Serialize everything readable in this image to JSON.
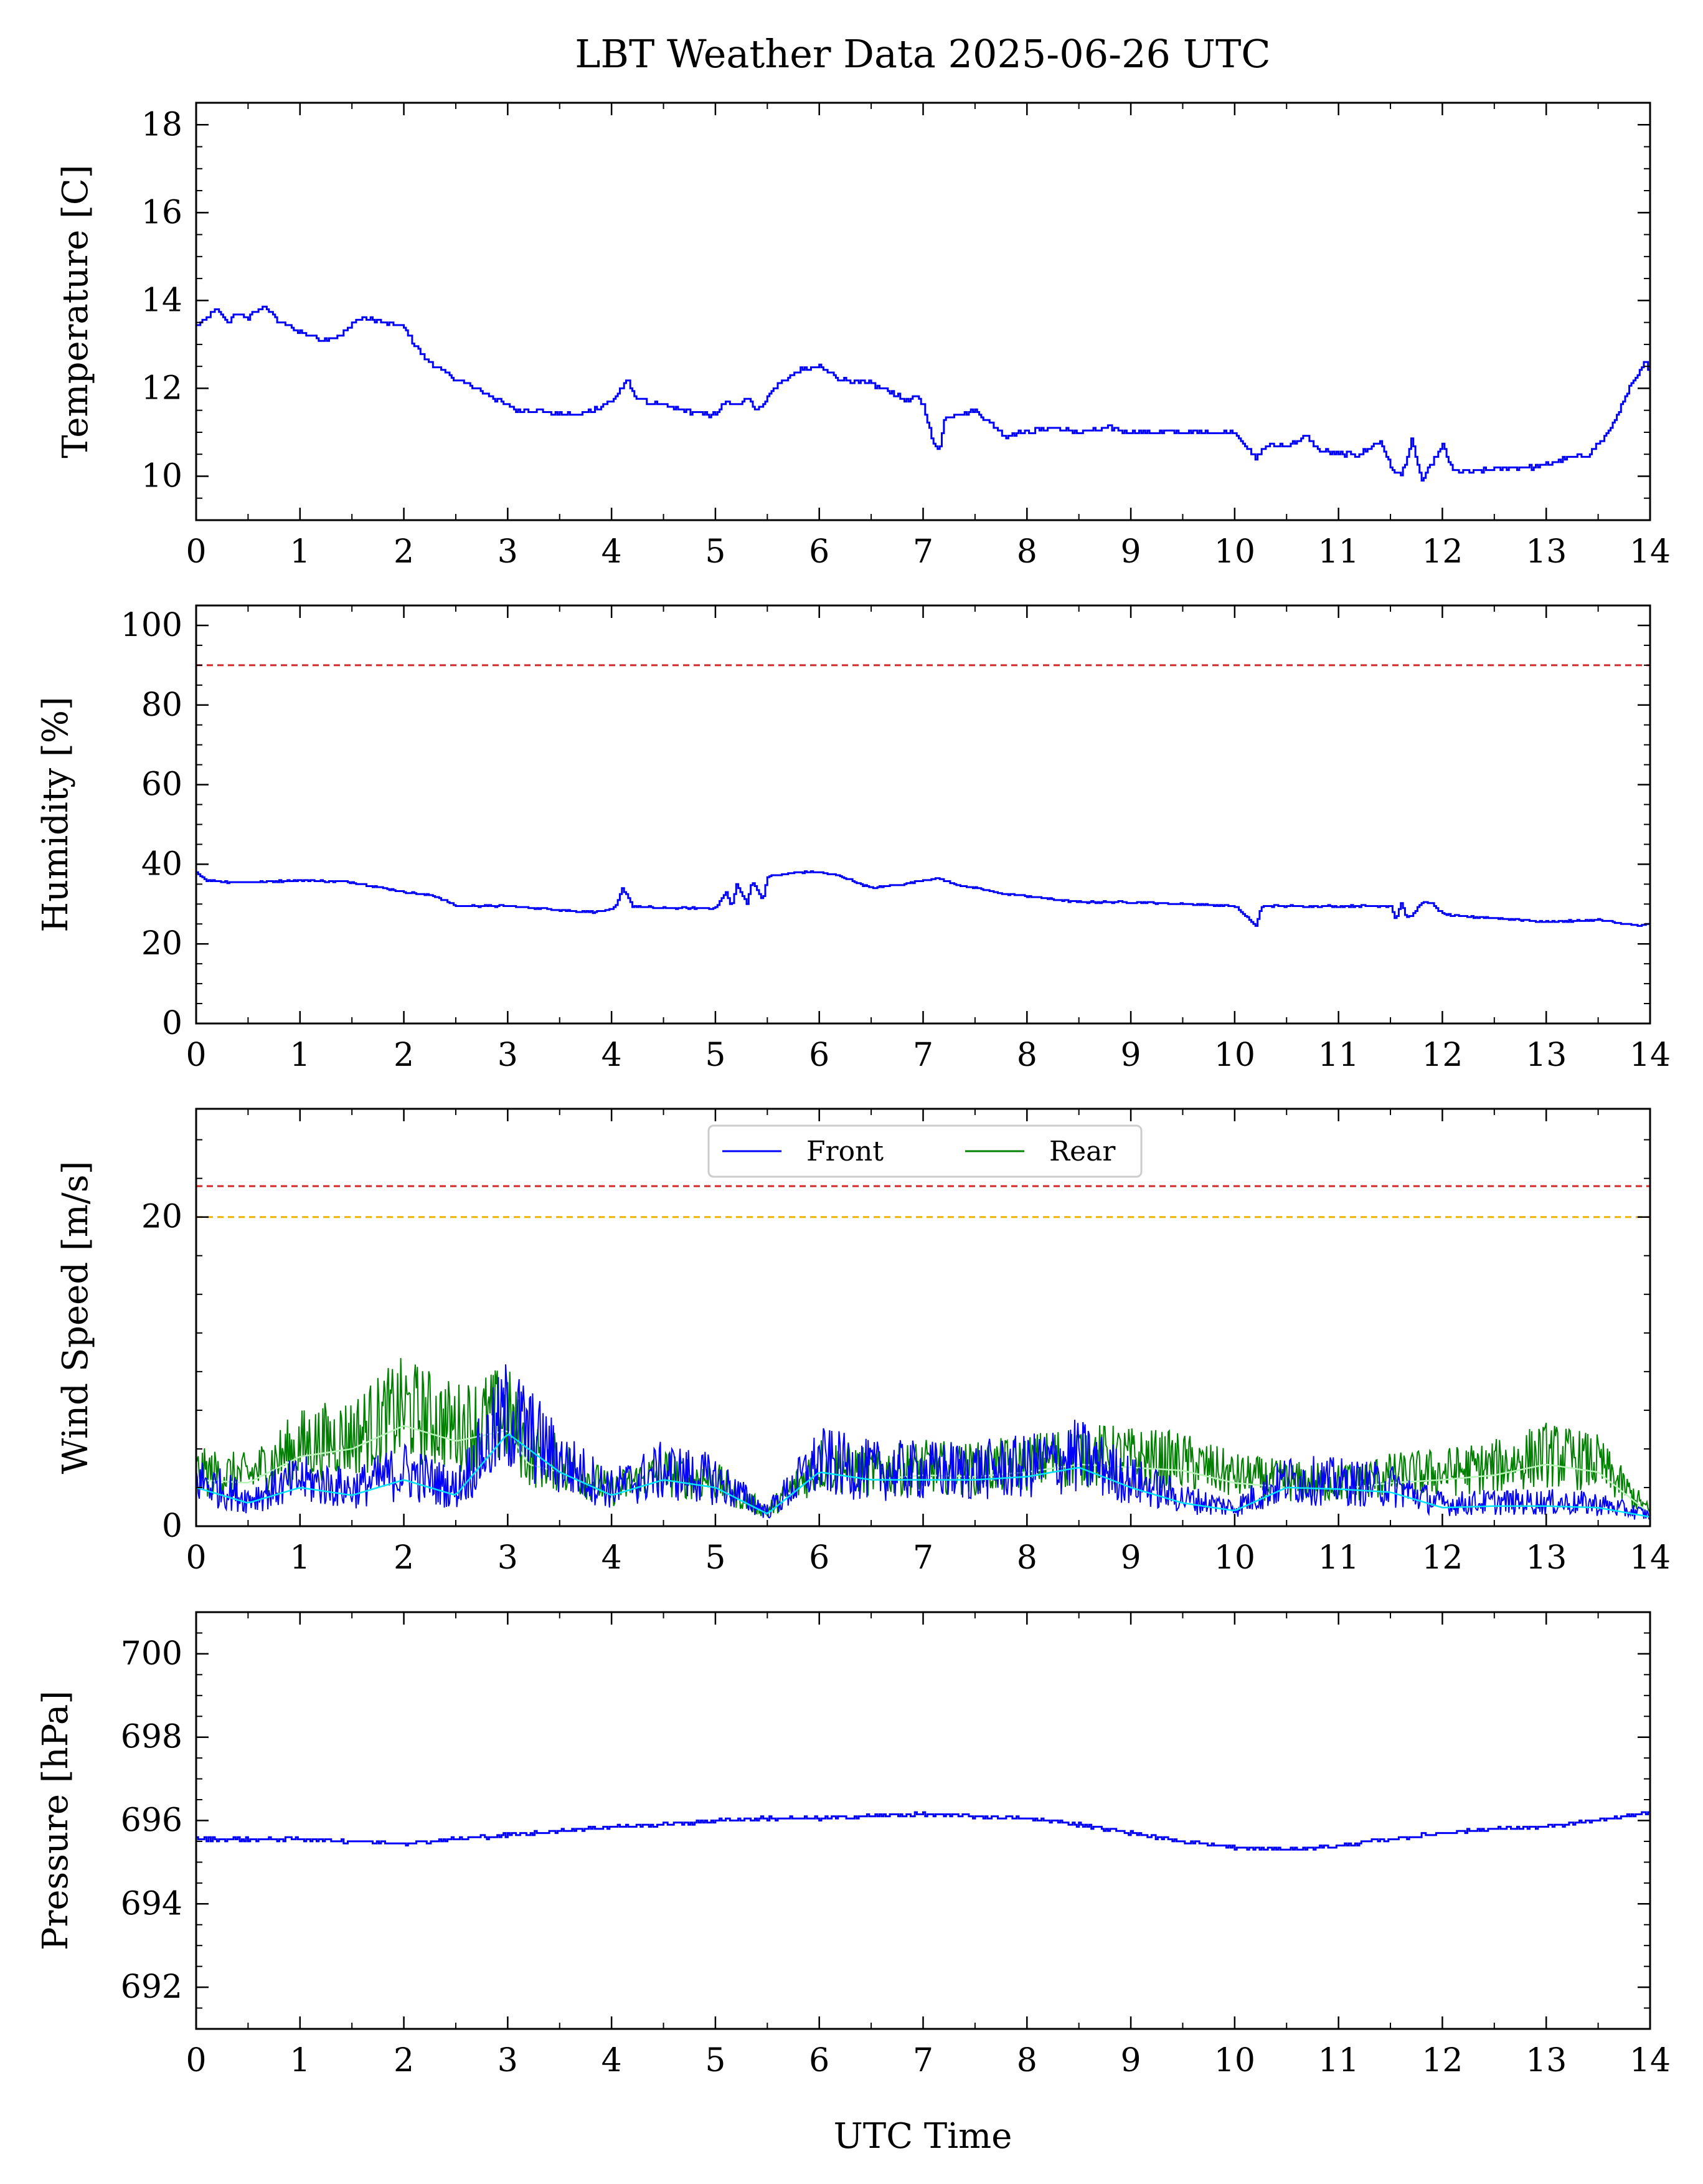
{
  "figure": {
    "title": "LBT Weather Data 2025-06-26 UTC",
    "xlabel": "UTC Time"
  },
  "colors": {
    "front": "#0000ff",
    "rear": "#008000",
    "smooth": "#00e5ff",
    "alarm": "#d62728",
    "warning": "#f0b400",
    "axes": "#000000"
  },
  "chart_data": [
    {
      "type": "line",
      "name": "temperature",
      "xlabel": "",
      "ylabel": "Temperature [C]",
      "xlim": [
        0,
        14
      ],
      "ylim": [
        9,
        18.5
      ],
      "xticks": [
        0,
        1,
        2,
        3,
        4,
        5,
        6,
        7,
        8,
        9,
        10,
        11,
        12,
        13,
        14
      ],
      "yticks": [
        10,
        12,
        14,
        16,
        18
      ],
      "series": [
        {
          "key": "front",
          "x": [
            0,
            0.1,
            0.2,
            0.3,
            0.4,
            0.5,
            0.65,
            0.8,
            0.9,
            1.0,
            1.1,
            1.2,
            1.4,
            1.5,
            1.6,
            1.8,
            2.0,
            2.1,
            2.2,
            2.3,
            2.5,
            2.7,
            3.0,
            3.1,
            3.3,
            3.5,
            3.7,
            3.9,
            4.0,
            4.15,
            4.2,
            4.3,
            4.5,
            4.7,
            4.9,
            5.0,
            5.1,
            5.2,
            5.3,
            5.4,
            5.5,
            5.6,
            5.8,
            6.0,
            6.2,
            6.5,
            6.7,
            6.85,
            6.95,
            7.0,
            7.1,
            7.15,
            7.2,
            7.3,
            7.5,
            7.8,
            7.9,
            8.0,
            8.2,
            8.5,
            8.8,
            9.0,
            9.3,
            9.6,
            10.0,
            10.2,
            10.3,
            10.5,
            10.7,
            10.8,
            11.0,
            11.2,
            11.4,
            11.5,
            11.6,
            11.7,
            11.8,
            11.9,
            12.0,
            12.1,
            12.3,
            12.6,
            12.9,
            13.2,
            13.4,
            13.6,
            13.8,
            13.95,
            14.0
          ],
          "y": [
            13.4,
            13.6,
            13.8,
            13.5,
            13.7,
            13.6,
            13.9,
            13.5,
            13.4,
            13.3,
            13.2,
            13.1,
            13.2,
            13.5,
            13.6,
            13.5,
            13.4,
            13.0,
            12.7,
            12.5,
            12.2,
            12.0,
            11.6,
            11.5,
            11.5,
            11.4,
            11.4,
            11.6,
            11.7,
            12.2,
            11.9,
            11.7,
            11.6,
            11.5,
            11.4,
            11.4,
            11.7,
            11.6,
            11.8,
            11.5,
            11.8,
            12.1,
            12.4,
            12.5,
            12.2,
            12.1,
            11.9,
            11.7,
            11.8,
            11.6,
            10.7,
            10.6,
            11.3,
            11.4,
            11.5,
            10.9,
            11.0,
            11.0,
            11.1,
            11.0,
            11.1,
            11.0,
            11.0,
            11.0,
            11.0,
            10.4,
            10.7,
            10.7,
            10.9,
            10.6,
            10.5,
            10.5,
            10.8,
            10.2,
            10.0,
            10.8,
            9.9,
            10.3,
            10.7,
            10.1,
            10.1,
            10.2,
            10.2,
            10.4,
            10.5,
            11.0,
            12.0,
            12.6,
            12.4
          ]
        }
      ],
      "hlines": []
    },
    {
      "type": "line",
      "name": "humidity",
      "xlabel": "",
      "ylabel": "Humidity [%]",
      "xlim": [
        0,
        14
      ],
      "ylim": [
        0,
        105
      ],
      "xticks": [
        0,
        1,
        2,
        3,
        4,
        5,
        6,
        7,
        8,
        9,
        10,
        11,
        12,
        13,
        14
      ],
      "yticks": [
        0,
        20,
        40,
        60,
        80,
        100
      ],
      "series": [
        {
          "key": "front",
          "x": [
            0,
            0.1,
            0.3,
            0.6,
            1.0,
            1.5,
            1.8,
            2.0,
            2.3,
            2.5,
            3.0,
            3.5,
            3.8,
            4.0,
            4.05,
            4.1,
            4.15,
            4.2,
            4.5,
            5.0,
            5.1,
            5.15,
            5.2,
            5.3,
            5.35,
            5.45,
            5.5,
            5.8,
            6.0,
            6.2,
            6.5,
            6.8,
            7.0,
            7.15,
            7.3,
            7.5,
            7.8,
            8.0,
            8.3,
            8.5,
            9.0,
            9.5,
            10.0,
            10.2,
            10.25,
            10.3,
            10.6,
            11.0,
            11.5,
            11.55,
            11.6,
            11.65,
            11.7,
            11.8,
            11.9,
            12.0,
            12.1,
            12.5,
            13.0,
            13.5,
            13.9,
            14.0
          ],
          "y": [
            38,
            36,
            35.5,
            35.5,
            36,
            35.5,
            34,
            33,
            32,
            29.5,
            29.5,
            28.5,
            28,
            28.5,
            30,
            34,
            32,
            29.5,
            29,
            29,
            33,
            29,
            35,
            30,
            36,
            31,
            37,
            38,
            38,
            37,
            34,
            35,
            36,
            36.5,
            35,
            34,
            32.5,
            32,
            31,
            30.5,
            30.5,
            30,
            29.5,
            24.5,
            29,
            29.5,
            29.5,
            29.5,
            29.5,
            26,
            30.5,
            26.5,
            27,
            30.5,
            30,
            27.5,
            27,
            26.5,
            25.5,
            26,
            24.5,
            25
          ]
        }
      ],
      "hlines": [
        {
          "y": 90,
          "key": "alarm"
        }
      ]
    },
    {
      "type": "line",
      "name": "wind",
      "xlabel": "",
      "ylabel": "Wind Speed [m/s]",
      "xlim": [
        0,
        14
      ],
      "ylim": [
        0,
        27
      ],
      "xticks": [
        0,
        1,
        2,
        3,
        4,
        5,
        6,
        7,
        8,
        9,
        10,
        11,
        12,
        13,
        14
      ],
      "yticks": [
        0,
        20
      ],
      "legend": {
        "placement": "upper-center"
      },
      "series": [
        {
          "key": "rear",
          "name": "Rear",
          "smooth": true,
          "x": [
            0,
            0.5,
            1,
            1.5,
            2,
            2.5,
            3,
            3.2,
            3.5,
            4,
            4.5,
            5,
            5.5,
            6,
            6.5,
            7,
            7.5,
            8,
            8.5,
            9,
            9.5,
            10,
            10.5,
            11,
            11.5,
            12,
            12.5,
            13,
            13.5,
            14
          ],
          "y": [
            3,
            2.8,
            4.5,
            5,
            6.5,
            5.5,
            6.2,
            4,
            3.5,
            2,
            3,
            2.5,
            0.8,
            3.5,
            3,
            3.3,
            3.2,
            3.5,
            4,
            3.8,
            3.6,
            2.8,
            2.5,
            2.4,
            2.8,
            3,
            3.3,
            4,
            3.5,
            0.8
          ]
        },
        {
          "key": "front",
          "name": "Front",
          "smooth": true,
          "x": [
            0,
            0.5,
            1,
            1.5,
            2,
            2.5,
            3,
            3.2,
            3.5,
            4,
            4.5,
            5,
            5.5,
            6,
            6.5,
            7,
            7.5,
            8,
            8.5,
            9,
            9.5,
            10,
            10.5,
            11,
            11.5,
            12,
            12.5,
            13,
            13.5,
            14
          ],
          "y": [
            2.5,
            1.5,
            2.5,
            2,
            3,
            2,
            6,
            5,
            3.5,
            2,
            3,
            2.5,
            0.8,
            3.5,
            3,
            3,
            3,
            3.2,
            3.8,
            2.5,
            1.5,
            1,
            2.5,
            2.4,
            2.2,
            1.2,
            1.3,
            1.3,
            1.2,
            0.6
          ]
        }
      ],
      "hlines": [
        {
          "y": 22,
          "key": "alarm"
        },
        {
          "y": 20,
          "key": "warning"
        }
      ]
    },
    {
      "type": "line",
      "name": "pressure",
      "xlabel": "UTC Time",
      "ylabel": "Pressure [hPa]",
      "xlim": [
        0,
        14
      ],
      "ylim": [
        691,
        701
      ],
      "xticks": [
        0,
        1,
        2,
        3,
        4,
        5,
        6,
        7,
        8,
        9,
        10,
        11,
        12,
        13,
        14
      ],
      "yticks": [
        692,
        694,
        696,
        698,
        700
      ],
      "series": [
        {
          "key": "front",
          "x": [
            0,
            1,
            2,
            2.5,
            3,
            3.5,
            4,
            4.5,
            5,
            5.5,
            6,
            6.5,
            7,
            7.5,
            8,
            8.5,
            9,
            9.5,
            10,
            10.5,
            11,
            11.5,
            12,
            12.5,
            13,
            13.5,
            14
          ],
          "y": [
            695.55,
            695.55,
            695.45,
            695.55,
            695.65,
            695.75,
            695.85,
            695.9,
            696.0,
            696.05,
            696.05,
            696.1,
            696.15,
            696.1,
            696.05,
            695.9,
            695.7,
            695.5,
            695.35,
            695.3,
            695.4,
            695.55,
            695.7,
            695.8,
            695.85,
            696.0,
            696.2
          ]
        }
      ],
      "hlines": []
    }
  ]
}
